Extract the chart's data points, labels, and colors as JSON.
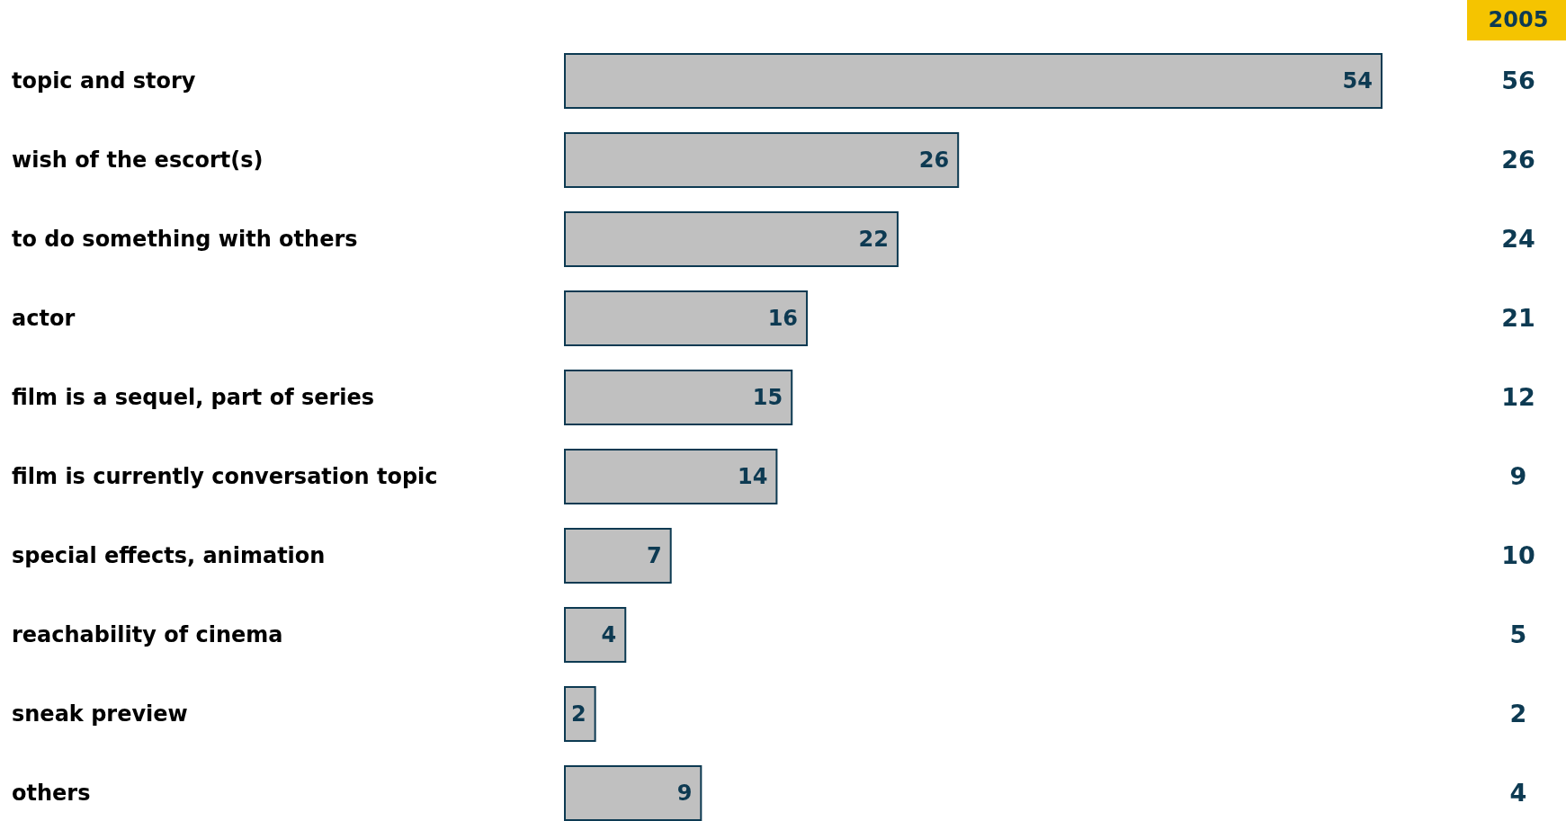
{
  "chart_data": {
    "type": "bar",
    "orientation": "horizontal",
    "data_labels": true,
    "categories": [
      "topic and story",
      "wish of the escort(s)",
      "to do something with others",
      "actor",
      "film is a sequel, part of series",
      "film is currently conversation topic",
      "special effects, animation",
      "reachability of cinema",
      "sneak preview",
      "others"
    ],
    "series": [
      {
        "color": "#c0c0c0",
        "values": [
          54,
          26,
          22,
          16,
          15,
          14,
          7,
          4,
          2,
          9
        ]
      }
    ],
    "annotations": [
      "2005",
      "56",
      "26",
      "24",
      "21",
      "12",
      "9",
      "10",
      "5",
      "2",
      "4"
    ]
  }
}
